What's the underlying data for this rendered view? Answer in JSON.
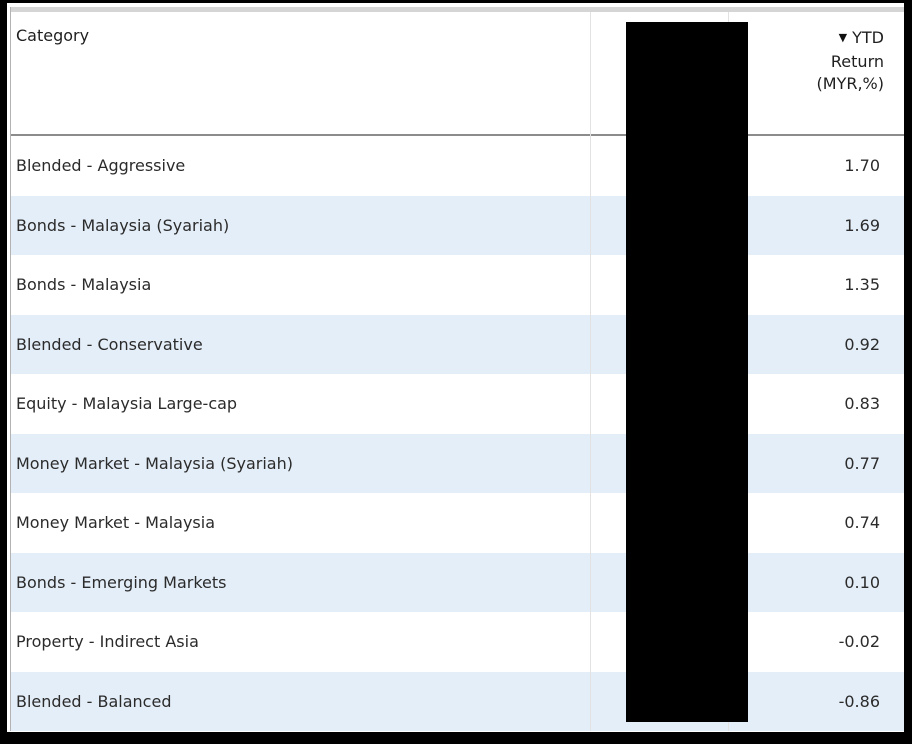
{
  "table": {
    "header": {
      "category_label": "Category",
      "sort_icon": "▼",
      "ytd_label": "YTD\nReturn\n(MYR,%)"
    },
    "rows": [
      {
        "category": "Blended - Aggressive",
        "ytd_return": "1.70"
      },
      {
        "category": "Bonds - Malaysia (Syariah)",
        "ytd_return": "1.69"
      },
      {
        "category": "Bonds - Malaysia",
        "ytd_return": "1.35"
      },
      {
        "category": "Blended - Conservative",
        "ytd_return": "0.92"
      },
      {
        "category": "Equity - Malaysia Large-cap",
        "ytd_return": "0.83"
      },
      {
        "category": "Money Market - Malaysia (Syariah)",
        "ytd_return": "0.77"
      },
      {
        "category": "Money Market - Malaysia",
        "ytd_return": "0.74"
      },
      {
        "category": "Bonds - Emerging Markets",
        "ytd_return": "0.10"
      },
      {
        "category": "Property - Indirect Asia",
        "ytd_return": "-0.02"
      },
      {
        "category": "Blended - Balanced",
        "ytd_return": "-0.86"
      }
    ],
    "colors": {
      "row_alt": "#e4eef8",
      "frame": "#000000",
      "redaction": "#000000",
      "header_rule": "#8c8c8c"
    }
  }
}
